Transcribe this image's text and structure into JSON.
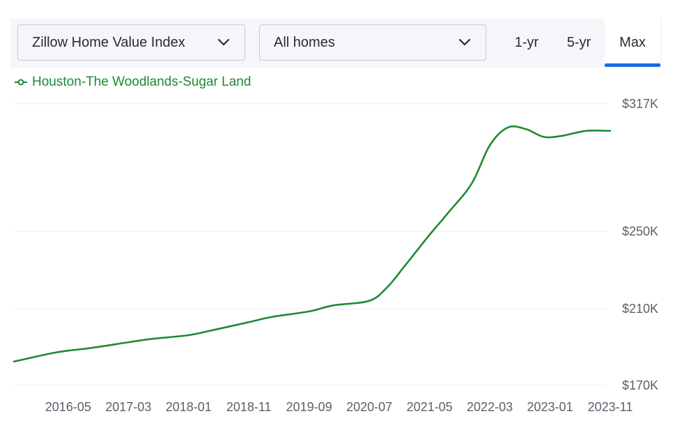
{
  "controls": {
    "metric_dropdown": {
      "selected": "Zillow Home Value Index"
    },
    "home_type_dropdown": {
      "selected": "All homes"
    },
    "ranges": [
      {
        "label": "1-yr",
        "active": false
      },
      {
        "label": "5-yr",
        "active": false
      },
      {
        "label": "Max",
        "active": true
      }
    ]
  },
  "colors": {
    "series": "#1e8a32",
    "active_tab": "#1f67e6",
    "grid": "#ececf0"
  },
  "chart_data": {
    "type": "line",
    "title": "",
    "xlabel": "",
    "ylabel": "",
    "legend": "top-left",
    "grid": true,
    "y_ticks": [
      {
        "label": "$317K",
        "value": 317
      },
      {
        "label": "$250K",
        "value": 250
      },
      {
        "label": "$210K",
        "value": 210
      },
      {
        "label": "$170K",
        "value": 170
      }
    ],
    "x_ticks": [
      "2016-05",
      "2017-03",
      "2018-01",
      "2018-11",
      "2019-09",
      "2020-07",
      "2021-05",
      "2022-03",
      "2023-01",
      "2023-11"
    ],
    "x_range": [
      "2015-08",
      "2023-11"
    ],
    "ylim": [
      170,
      317
    ],
    "series": [
      {
        "name": "Houston-The Woodlands-Sugar Land",
        "x": [
          "2015-08",
          "2016-02",
          "2016-05",
          "2016-09",
          "2017-03",
          "2017-07",
          "2018-01",
          "2018-05",
          "2018-11",
          "2019-03",
          "2019-09",
          "2020-01",
          "2020-07",
          "2020-10",
          "2021-01",
          "2021-05",
          "2021-08",
          "2021-12",
          "2022-03",
          "2022-06",
          "2022-09",
          "2022-12",
          "2023-03",
          "2023-07",
          "2023-11"
        ],
        "values": [
          182.4,
          186.6,
          188.1,
          189.6,
          192.5,
          194.3,
          196.2,
          198.8,
          203.0,
          205.8,
          208.6,
          211.7,
          214.1,
          221.2,
          232.6,
          248.2,
          259.4,
          275.1,
          295.2,
          304.6,
          303.7,
          299.6,
          300.2,
          302.8,
          302.8
        ]
      }
    ]
  }
}
